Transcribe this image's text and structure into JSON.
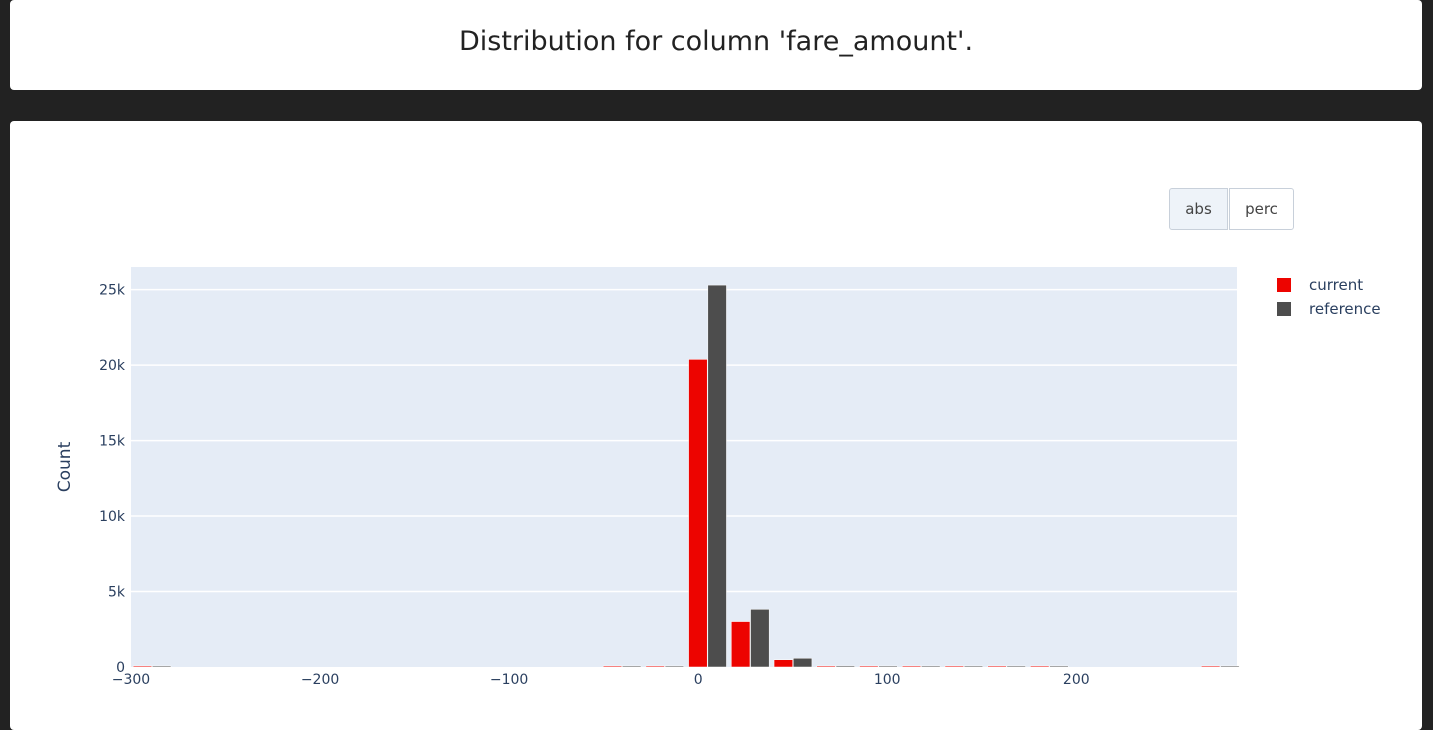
{
  "header": {
    "title": "Distribution for column 'fare_amount'."
  },
  "toolbar": {
    "abs_label": "abs",
    "perc_label": "perc",
    "selected": "abs"
  },
  "colors": {
    "current": "#ed0400",
    "reference": "#4d4d4d",
    "plot_bg": "#e5ecf6",
    "page_bg": "#222222"
  },
  "chart_data": {
    "type": "bar",
    "title": "",
    "xlabel": "",
    "ylabel": "Count",
    "xlim": [
      -300,
      285
    ],
    "ylim": [
      0,
      26500
    ],
    "xticks": [
      -300,
      -200,
      -100,
      0,
      100,
      200
    ],
    "xtick_labels": [
      "−300",
      "−200",
      "−100",
      "0",
      "100",
      "200"
    ],
    "yticks": [
      0,
      5000,
      10000,
      15000,
      20000,
      25000
    ],
    "ytick_labels": [
      "0",
      "5k",
      "10k",
      "15k",
      "20k",
      "25k"
    ],
    "grid": true,
    "legend_position": "top-right",
    "bin_width": 22.6,
    "bin_starts": [
      -300,
      -277.4,
      -254.8,
      -232.2,
      -209.6,
      -187,
      -164.4,
      -141.8,
      -119.2,
      -96.6,
      -74,
      -51.4,
      -28.8,
      -6.2,
      16.4,
      39,
      61.6,
      84.2,
      106.8,
      129.4,
      152,
      174.6,
      197.2,
      219.8,
      242.4,
      265
    ],
    "series": [
      {
        "name": "current",
        "values": [
          1,
          0,
          0,
          0,
          0,
          0,
          0,
          0,
          0,
          0,
          0,
          1,
          40,
          20380,
          3010,
          480,
          60,
          12,
          4,
          2,
          1,
          1,
          0,
          0,
          0,
          1
        ]
      },
      {
        "name": "reference",
        "values": [
          1,
          0,
          0,
          0,
          0,
          0,
          0,
          0,
          0,
          0,
          0,
          2,
          55,
          25300,
          3820,
          580,
          70,
          16,
          5,
          2,
          1,
          1,
          0,
          0,
          0,
          1
        ]
      }
    ]
  }
}
